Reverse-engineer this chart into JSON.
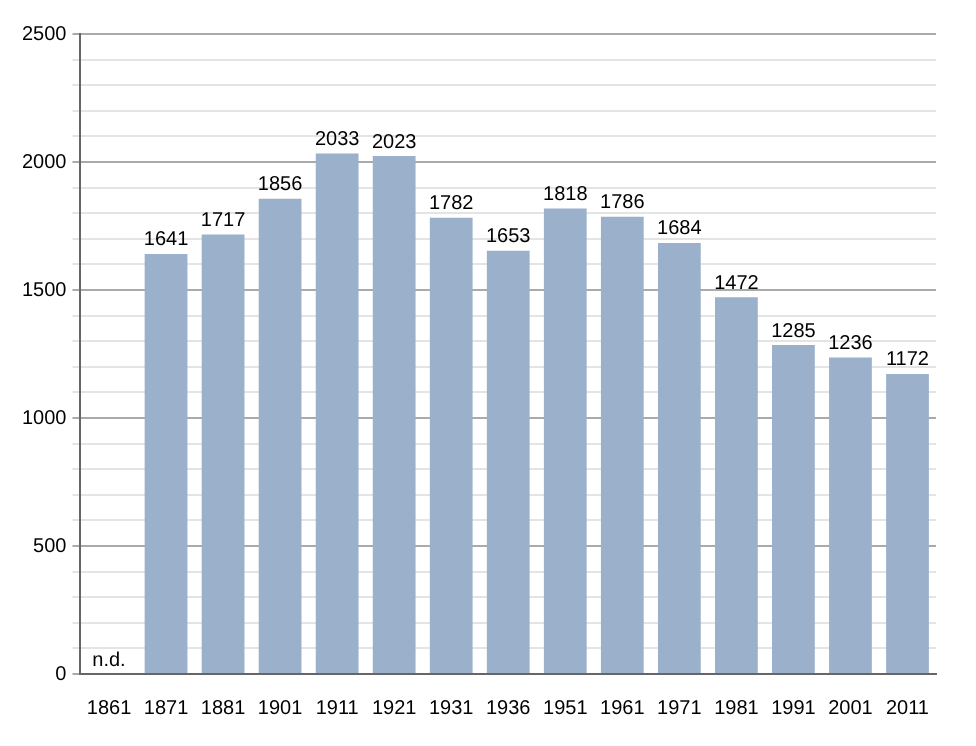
{
  "chart_data": {
    "type": "bar",
    "categories": [
      "1861",
      "1871",
      "1881",
      "1901",
      "1911",
      "1921",
      "1931",
      "1936",
      "1951",
      "1961",
      "1971",
      "1981",
      "1991",
      "2001",
      "2011"
    ],
    "values": [
      null,
      1641,
      1717,
      1856,
      2033,
      2023,
      1782,
      1653,
      1818,
      1786,
      1684,
      1472,
      1285,
      1236,
      1172
    ],
    "value_labels": [
      "n.d.",
      "1641",
      "1717",
      "1856",
      "2033",
      "2023",
      "1782",
      "1653",
      "1818",
      "1786",
      "1684",
      "1472",
      "1285",
      "1236",
      "1172"
    ],
    "color": "#9ab0cb",
    "ylim": [
      0,
      2500
    ],
    "yticks": [
      0,
      {
        "value": 100,
        "label": null
      },
      {
        "value": 200,
        "label": null
      },
      {
        "value": 300,
        "label": null
      },
      {
        "value": 400,
        "label": null
      },
      500,
      {
        "value": 600,
        "label": null
      },
      {
        "value": 700,
        "label": null
      },
      {
        "value": 800,
        "label": null
      },
      {
        "value": 900,
        "label": null
      },
      1000,
      {
        "value": 1100,
        "label": null
      },
      {
        "value": 1200,
        "label": null
      },
      {
        "value": 1300,
        "label": null
      },
      {
        "value": 1400,
        "label": null
      },
      1500,
      {
        "value": 1600,
        "label": null
      },
      {
        "value": 1700,
        "label": null
      },
      {
        "value": 1800,
        "label": null
      },
      {
        "value": 1900,
        "label": null
      },
      2000,
      {
        "value": 2100,
        "label": null
      },
      {
        "value": 2200,
        "label": null
      },
      {
        "value": 2300,
        "label": null
      },
      {
        "value": 2400,
        "label": null
      },
      2500
    ],
    "grid": "y"
  }
}
